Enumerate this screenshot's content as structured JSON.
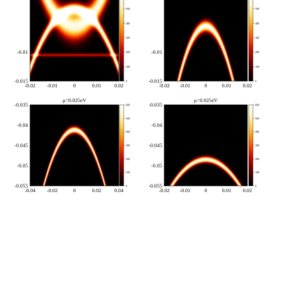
{
  "figure": {
    "colormap": [
      "#000000",
      "#3a0000",
      "#8a0000",
      "#d01000",
      "#ff5000",
      "#ff9a10",
      "#ffd860",
      "#fff6c8",
      "#ffffff"
    ]
  },
  "chart_data": [
    {
      "id": "p1",
      "type": "heatmap",
      "title": "",
      "xlim": [
        -0.02,
        0.02
      ],
      "ylim": [
        -0.015,
        0.0
      ],
      "xticks": [
        "-0.02",
        "-0.01",
        "0",
        "0.01",
        "0.02"
      ],
      "yticks": [
        {
          "v": -0.01,
          "t": "-0.01"
        },
        {
          "v": -0.015,
          "t": "-0.015"
        }
      ],
      "colorbar": {
        "max": 600,
        "ticks": [
          "500",
          "400",
          "300",
          "200",
          "100",
          "0"
        ]
      },
      "bands": [
        {
          "kind": "parabola",
          "x0": 0.0,
          "y0": -0.0025,
          "curv": -26,
          "width": 0.00065,
          "amp": 1.0
        },
        {
          "kind": "parabola",
          "x0": 0.0,
          "y0": -0.0055,
          "curv": 30,
          "width": 0.0016,
          "amp": 0.95
        },
        {
          "kind": "hline",
          "y0": -0.0105,
          "width": 0.0002,
          "amp": 0.35
        }
      ]
    },
    {
      "id": "p2",
      "type": "heatmap",
      "title": "",
      "xlim": [
        -0.02,
        0.02
      ],
      "ylim": [
        -0.015,
        0.0
      ],
      "xticks": [
        "-0.02",
        "-0.01",
        "0",
        "0.01",
        "0.02"
      ],
      "yticks": [
        {
          "v": -0.01,
          "t": "-0.01"
        },
        {
          "v": -0.015,
          "t": "-0.015"
        }
      ],
      "colorbar": {
        "max": 600,
        "ticks": [
          "500",
          "400",
          "300",
          "200",
          "100",
          "0"
        ]
      },
      "bands": [
        {
          "kind": "parabola",
          "x0": 0.0,
          "y0": -0.0055,
          "curv": -55,
          "width": 0.00065,
          "amp": 1.0
        }
      ]
    },
    {
      "id": "p3",
      "type": "heatmap",
      "title": "μ=0.025eV",
      "xlim": [
        -0.04,
        0.04
      ],
      "ylim": [
        -0.055,
        -0.035
      ],
      "xticks": [
        "-0.04",
        "-0.02",
        "0",
        "0.02",
        "0.04"
      ],
      "yticks": [
        {
          "v": -0.035,
          "t": "-0.035"
        },
        {
          "v": -0.04,
          "t": "-0.04"
        },
        {
          "v": -0.045,
          "t": "-0.045"
        },
        {
          "v": -0.05,
          "t": "-0.05"
        },
        {
          "v": -0.055,
          "t": "-0.055"
        }
      ],
      "colorbar": {
        "max": 600,
        "ticks": [
          "600",
          "500",
          "400",
          "300",
          "200",
          "100",
          "0"
        ]
      },
      "bands": [
        {
          "kind": "parabola",
          "x0": 0.0,
          "y0": -0.0412,
          "curv": -18,
          "width": 0.00055,
          "amp": 1.0
        }
      ]
    },
    {
      "id": "p4",
      "type": "heatmap",
      "title": "μ=0.025eV",
      "xlim": [
        -0.02,
        0.02
      ],
      "ylim": [
        -0.055,
        -0.035
      ],
      "xticks": [
        "-0.02",
        "-0.01",
        "0",
        "0.01",
        "0.02"
      ],
      "yticks": [
        {
          "v": -0.035,
          "t": "-0.035"
        },
        {
          "v": -0.04,
          "t": "-0.04"
        },
        {
          "v": -0.045,
          "t": "-0.045"
        },
        {
          "v": -0.05,
          "t": "-0.05"
        },
        {
          "v": -0.055,
          "t": "-0.055"
        }
      ],
      "colorbar": {
        "max": 600,
        "ticks": [
          "600",
          "500",
          "400",
          "300",
          "200",
          "100",
          "0"
        ]
      },
      "bands": [
        {
          "kind": "parabola",
          "x0": 0.0,
          "y0": -0.0485,
          "curv": -24,
          "width": 0.0005,
          "amp": 1.0
        }
      ]
    }
  ]
}
